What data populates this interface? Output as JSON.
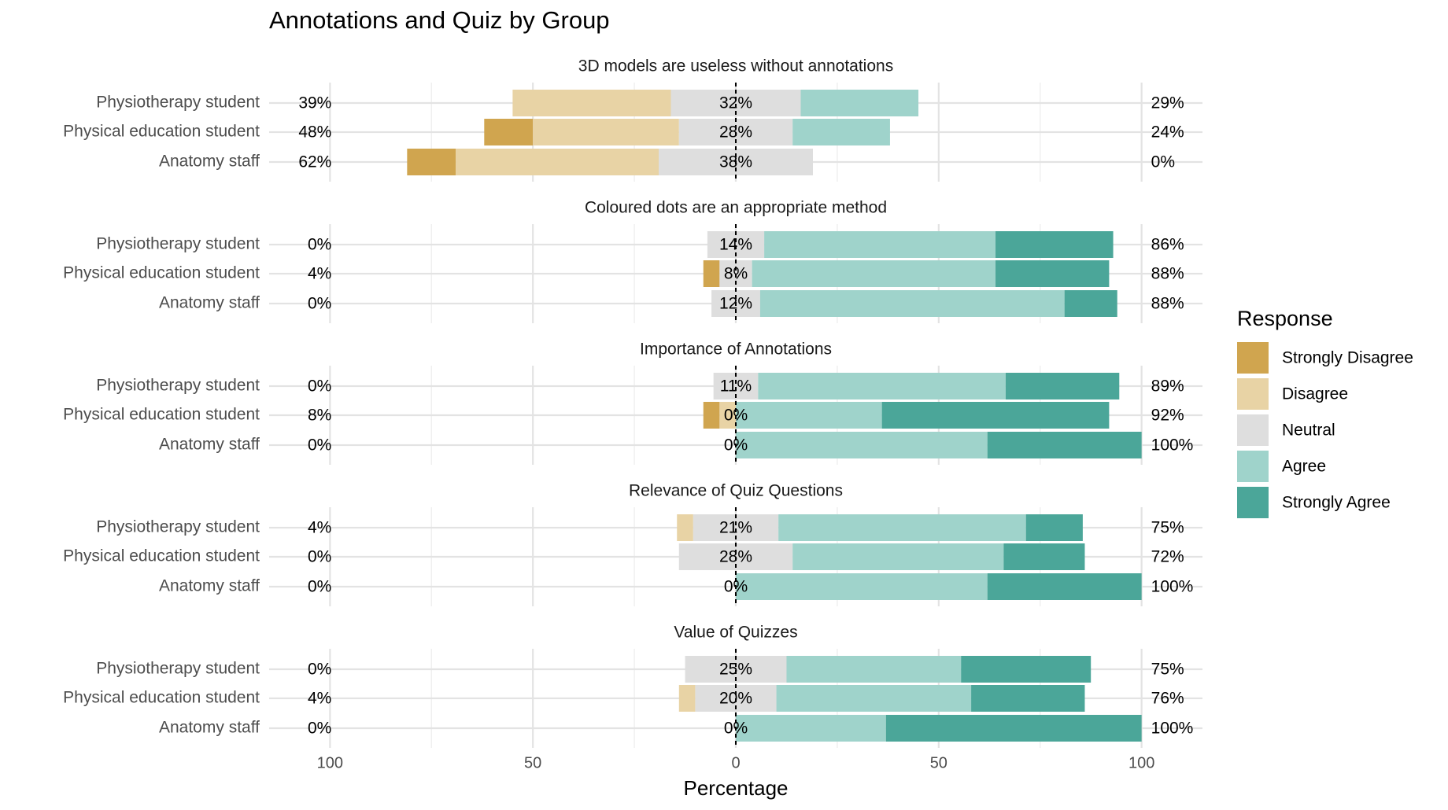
{
  "chart_data": {
    "type": "likert",
    "title": "Annotations and Quiz by Group",
    "xlabel": "Percentage",
    "legend_title": "Response",
    "legend_position": "right",
    "grid": true,
    "xlim": [
      -115,
      115
    ],
    "xticks": [
      {
        "value": -100,
        "label": "100"
      },
      {
        "value": -50,
        "label": "50"
      },
      0,
      50,
      100
    ],
    "minor_xticks": [
      -75,
      -25,
      25,
      75
    ],
    "categories": [
      "Physiotherapy student",
      "Physical education student",
      "Anatomy staff"
    ],
    "responses": [
      {
        "name": "Strongly Disagree",
        "color": "#D0A54F"
      },
      {
        "name": "Disagree",
        "color": "#E8D3A5"
      },
      {
        "name": "Neutral",
        "color": "#DEDEDE"
      },
      {
        "name": "Agree",
        "color": "#9FD3CB"
      },
      {
        "name": "Strongly Agree",
        "color": "#4BA699"
      }
    ],
    "panels": [
      {
        "title": "3D models are useless without annotations",
        "series": [
          {
            "values": [
              0,
              12,
              12
            ]
          },
          {
            "values": [
              39,
              36,
              50
            ]
          },
          {
            "values": [
              32,
              28,
              38
            ],
            "value_labels": [
              "32%",
              "28%",
              "38%"
            ]
          },
          {
            "values": [
              29,
              24,
              0
            ]
          },
          {
            "values": [
              0,
              0,
              0
            ]
          }
        ],
        "low": {
          "values": [
            39,
            48,
            62
          ],
          "value_labels": [
            "39%",
            "48%",
            "62%"
          ]
        },
        "high": {
          "values": [
            29,
            24,
            0
          ],
          "value_labels": [
            "29%",
            "24%",
            "0%"
          ]
        }
      },
      {
        "title": "Coloured dots are an appropriate method",
        "series": [
          {
            "values": [
              0,
              4,
              0
            ]
          },
          {
            "values": [
              0,
              0,
              0
            ]
          },
          {
            "values": [
              14,
              8,
              12
            ],
            "value_labels": [
              "14%",
              "8%",
              "12%"
            ]
          },
          {
            "values": [
              57,
              60,
              75
            ]
          },
          {
            "values": [
              29,
              28,
              13
            ]
          }
        ],
        "low": {
          "values": [
            0,
            4,
            0
          ],
          "value_labels": [
            "0%",
            "4%",
            "0%"
          ]
        },
        "high": {
          "values": [
            86,
            88,
            88
          ],
          "value_labels": [
            "86%",
            "88%",
            "88%"
          ]
        }
      },
      {
        "title": "Importance of Annotations",
        "series": [
          {
            "values": [
              0,
              4,
              0
            ]
          },
          {
            "values": [
              0,
              4,
              0
            ]
          },
          {
            "values": [
              11,
              0,
              0
            ],
            "value_labels": [
              "11%",
              "0%",
              "0%"
            ]
          },
          {
            "values": [
              61,
              36,
              62
            ]
          },
          {
            "values": [
              28,
              56,
              38
            ]
          }
        ],
        "low": {
          "values": [
            0,
            8,
            0
          ],
          "value_labels": [
            "0%",
            "8%",
            "0%"
          ]
        },
        "high": {
          "values": [
            89,
            92,
            100
          ],
          "value_labels": [
            "89%",
            "92%",
            "100%"
          ]
        }
      },
      {
        "title": "Relevance of Quiz Questions",
        "series": [
          {
            "values": [
              0,
              0,
              0
            ]
          },
          {
            "values": [
              4,
              0,
              0
            ]
          },
          {
            "values": [
              21,
              28,
              0
            ],
            "value_labels": [
              "21%",
              "28%",
              "0%"
            ]
          },
          {
            "values": [
              61,
              52,
              62
            ]
          },
          {
            "values": [
              14,
              20,
              38
            ]
          }
        ],
        "low": {
          "values": [
            4,
            0,
            0
          ],
          "value_labels": [
            "4%",
            "0%",
            "0%"
          ]
        },
        "high": {
          "values": [
            75,
            72,
            100
          ],
          "value_labels": [
            "75%",
            "72%",
            "100%"
          ]
        }
      },
      {
        "title": "Value of Quizzes",
        "series": [
          {
            "values": [
              0,
              0,
              0
            ]
          },
          {
            "values": [
              0,
              4,
              0
            ]
          },
          {
            "values": [
              25,
              20,
              0
            ],
            "value_labels": [
              "25%",
              "20%",
              "0%"
            ]
          },
          {
            "values": [
              43,
              48,
              37
            ]
          },
          {
            "values": [
              32,
              28,
              63
            ]
          }
        ],
        "low": {
          "values": [
            0,
            4,
            0
          ],
          "value_labels": [
            "0%",
            "4%",
            "0%"
          ]
        },
        "high": {
          "values": [
            75,
            76,
            100
          ],
          "value_labels": [
            "75%",
            "76%",
            "100%"
          ]
        }
      }
    ]
  }
}
